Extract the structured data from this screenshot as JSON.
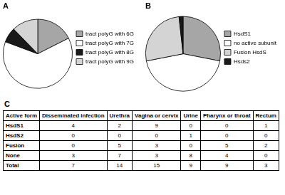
{
  "chart_data": [
    {
      "type": "pie",
      "title": "A",
      "categories": [
        "tract polyG with 6G",
        "tract polyG with 7G",
        "tract polyG with 8G",
        "tract polyG with 9G"
      ],
      "values": [
        10,
        36,
        4,
        7
      ],
      "colors": [
        "#a6a6a6",
        "#ffffff",
        "#1a1a1a",
        "#d4d4d4"
      ],
      "legend": "right"
    },
    {
      "type": "pie",
      "title": "B",
      "categories": [
        "HsdS1",
        "no active subunit",
        "Fusion HsdS",
        "Hsds2"
      ],
      "values": [
        16,
        25,
        15,
        1
      ],
      "colors": [
        "#a6a6a6",
        "#ffffff",
        "#d4d4d4",
        "#1a1a1a"
      ],
      "legend": "right"
    }
  ],
  "table": {
    "label": "C",
    "header": [
      "Active form",
      "Disseminated infection",
      "Urethra",
      "Vagina or cervix",
      "Urine",
      "Pharynx or throat",
      "Rectum"
    ],
    "rows": [
      [
        "HsdS1",
        4,
        2,
        9,
        0,
        0,
        1
      ],
      [
        "HsdS2",
        0,
        0,
        0,
        1,
        0,
        0
      ],
      [
        "Fusion",
        0,
        5,
        3,
        0,
        5,
        2
      ],
      [
        "None",
        3,
        7,
        3,
        8,
        4,
        0
      ],
      [
        "Total",
        7,
        14,
        15,
        9,
        9,
        3
      ]
    ]
  }
}
